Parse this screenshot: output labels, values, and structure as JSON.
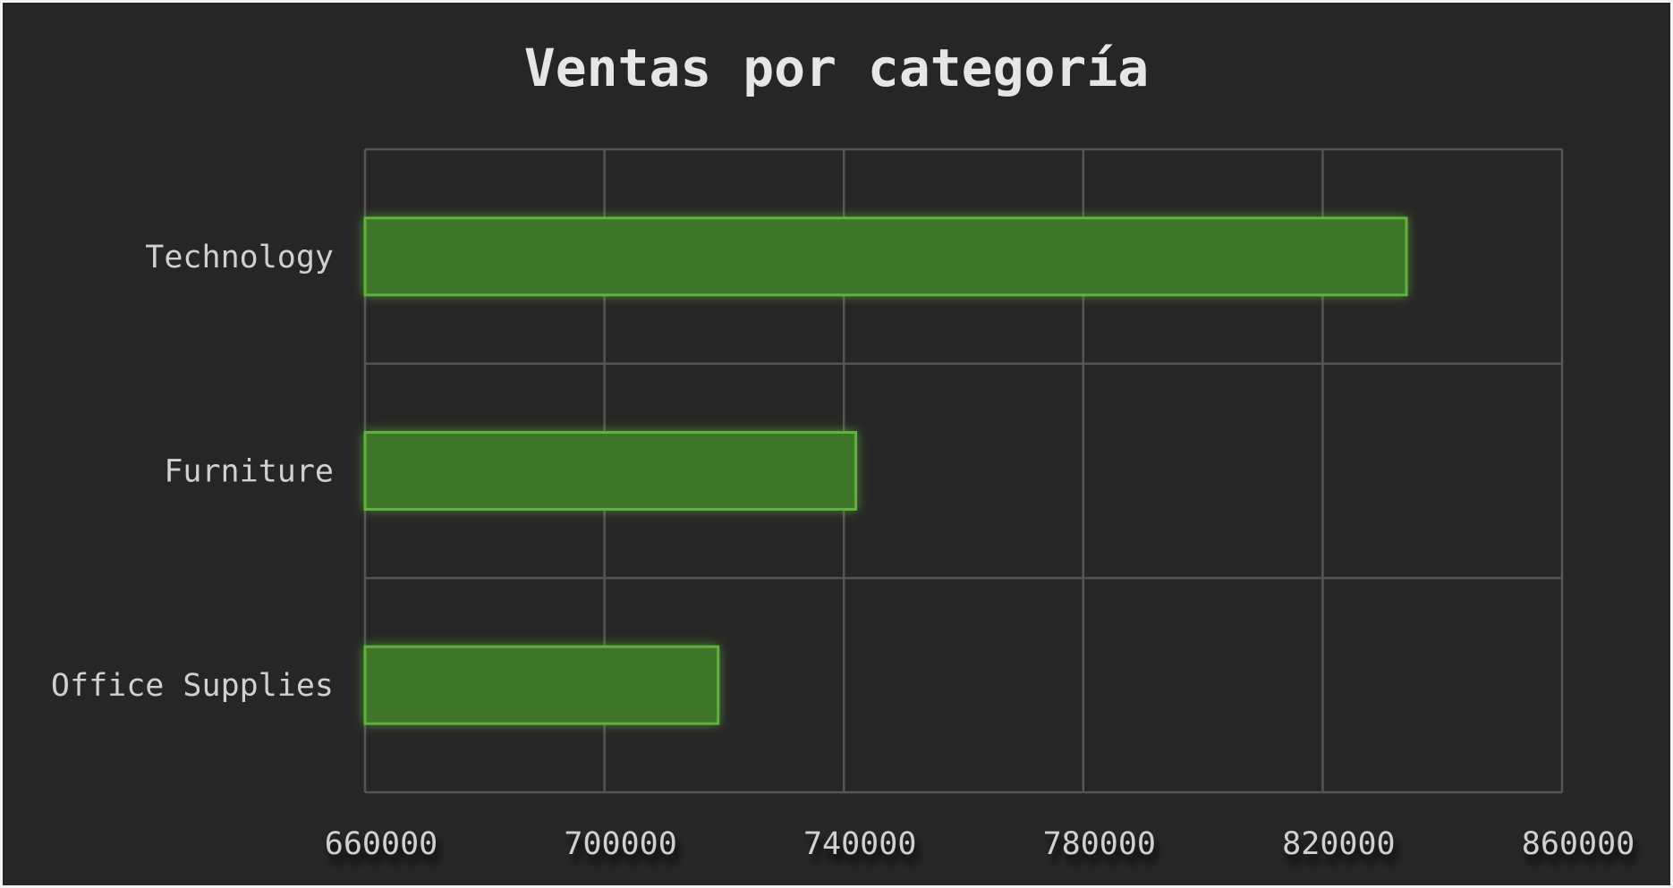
{
  "chart_data": {
    "type": "bar",
    "orientation": "horizontal",
    "title": "Ventas por categoría",
    "categories": [
      "Technology",
      "Furniture",
      "Office Supplies"
    ],
    "values": [
      834000,
      742000,
      719000
    ],
    "xlim": [
      660000,
      860000
    ],
    "xticks": [
      "660000",
      "700000",
      "740000",
      "780000",
      "820000",
      "860000"
    ],
    "xlabel": "",
    "ylabel": "",
    "grid": true,
    "colors": {
      "background": "#262626",
      "bar_fill": "#41762b",
      "bar_edge": "#5fb23c",
      "grid": "#555555",
      "text": "#d0d0d0"
    }
  }
}
